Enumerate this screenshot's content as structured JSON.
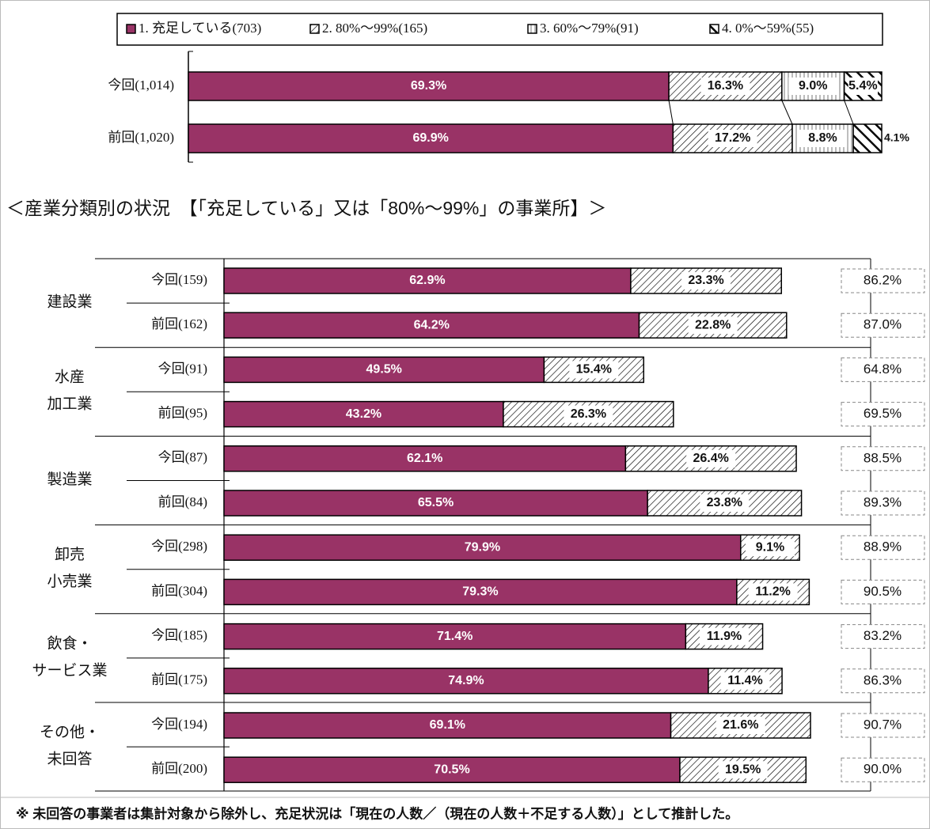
{
  "chart_data": [
    {
      "type": "bar",
      "orientation": "horizontal",
      "stacked": true,
      "categories": [
        "今回(1,014)",
        "前回(1,020)"
      ],
      "xlim": [
        0,
        100
      ],
      "series": [
        {
          "name": "1. 充足している(703)",
          "color": "#993366",
          "pattern": "solid",
          "values": [
            69.3,
            69.9
          ],
          "value_labels": [
            "69.3%",
            "69.9%"
          ]
        },
        {
          "name": "2. 80%～99%(165)",
          "color": "#000000",
          "pattern": "diagonal",
          "values": [
            16.3,
            17.2
          ],
          "value_labels": [
            "16.3%",
            "17.2%"
          ]
        },
        {
          "name": "3. 60%～79%(91)",
          "color": "#000000",
          "pattern": "vertical",
          "values": [
            9.0,
            8.8
          ],
          "value_labels": [
            "9.0%",
            "8.8%"
          ]
        },
        {
          "name": "4. 0%～59%(55)",
          "color": "#000000",
          "pattern": "bold-diagonal",
          "values": [
            5.4,
            4.1
          ],
          "value_labels": [
            "5.4%",
            "4.1%"
          ]
        }
      ]
    },
    {
      "type": "bar",
      "orientation": "horizontal",
      "stacked": true,
      "title": "＜産業分類別の状況　【「充足している」又は「80%～99%」の事業所】＞",
      "groups": [
        [
          "建設業"
        ],
        [
          "水産",
          "加工業"
        ],
        [
          "製造業"
        ],
        [
          "卸売",
          "小売業"
        ],
        [
          "飲食・",
          "サービス業"
        ],
        [
          "その他・",
          "未回答"
        ]
      ],
      "categories": [
        "今回(159)",
        "前回(162)",
        "今回(91)",
        "前回(95)",
        "今回(87)",
        "前回(84)",
        "今回(298)",
        "前回(304)",
        "今回(185)",
        "前回(175)",
        "今回(194)",
        "前回(200)"
      ],
      "xlim": [
        0,
        100
      ],
      "series": [
        {
          "color": "#993366",
          "pattern": "solid",
          "values": [
            62.9,
            64.2,
            49.5,
            43.2,
            62.1,
            65.5,
            79.9,
            79.3,
            71.4,
            74.9,
            69.1,
            70.5
          ],
          "value_labels": [
            "62.9%",
            "64.2%",
            "49.5%",
            "43.2%",
            "62.1%",
            "65.5%",
            "79.9%",
            "79.3%",
            "71.4%",
            "74.9%",
            "69.1%",
            "70.5%"
          ]
        },
        {
          "color": "#000000",
          "pattern": "diagonal",
          "values": [
            23.3,
            22.8,
            15.4,
            26.3,
            26.4,
            23.8,
            9.1,
            11.2,
            11.9,
            11.4,
            21.6,
            19.5
          ],
          "value_labels": [
            "23.3%",
            "22.8%",
            "15.4%",
            "26.3%",
            "26.4%",
            "23.8%",
            "9.1%",
            "11.2%",
            "11.9%",
            "11.4%",
            "21.6%",
            "19.5%"
          ]
        }
      ],
      "totals": [
        86.2,
        87.0,
        64.8,
        69.5,
        88.5,
        89.3,
        88.9,
        90.5,
        83.2,
        86.3,
        90.7,
        90.0
      ],
      "totals_labels": [
        "86.2%",
        "87.0%",
        "64.8%",
        "69.5%",
        "88.5%",
        "89.3%",
        "88.9%",
        "90.5%",
        "83.2%",
        "86.3%",
        "90.7%",
        "90.0%"
      ],
      "footnote": "※ 未回答の事業者は集計対象から除外し、充足状況は「現在の人数／（現在の人数＋不足する人数）」として推計した。"
    }
  ]
}
